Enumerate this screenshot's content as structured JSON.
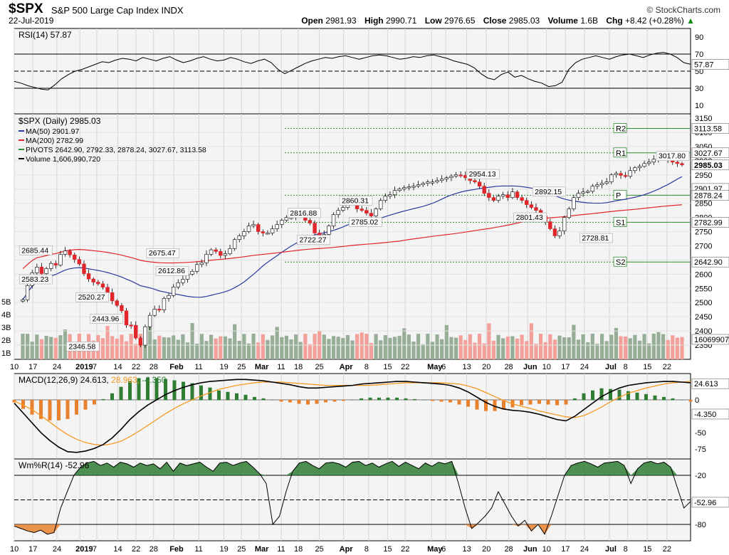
{
  "header": {
    "symbol": "$SPX",
    "name": "S&P 500 Large Cap Index",
    "exchange": "INDX",
    "date": "22-Jul-2019",
    "brand": "© StockCharts.com",
    "open_label": "Open",
    "open": "2981.93",
    "high_label": "High",
    "high": "2990.71",
    "low_label": "Low",
    "low": "2976.65",
    "close_label": "Close",
    "close": "2985.03",
    "volume_label": "Volume",
    "volume": "1.6B",
    "chg_label": "Chg",
    "chg": "+8.42 (+0.28%)"
  },
  "colors": {
    "up": "#ffffff",
    "down": "#e0262b",
    "ma50": "#2b3aa0",
    "ma200": "#e0262b",
    "pivot": "#2e8b2e",
    "rsi": "#000000",
    "macd_signal": "#f59a23",
    "hist_pos": "#2e7d32",
    "hist_neg": "#e8812e",
    "vol_up": "#96ad96",
    "vol_down": "#f4a09a"
  },
  "chart_data": [
    {
      "type": "line",
      "panel": "rsi",
      "label": "RSI(14) 57.87",
      "ylim": [
        0,
        100
      ],
      "yticks": [
        10,
        30,
        50,
        70,
        90
      ],
      "current": "57.87",
      "values": [
        38,
        36,
        33,
        31,
        29,
        28,
        34,
        41,
        46,
        50,
        52,
        55,
        58,
        61,
        60,
        63,
        65,
        64,
        62,
        66,
        64,
        62,
        65,
        67,
        63,
        60,
        62,
        65,
        67,
        64,
        62,
        63,
        66,
        64,
        61,
        59,
        62,
        64,
        60,
        52,
        47,
        51,
        55,
        59,
        62,
        64,
        66,
        65,
        67,
        68,
        66,
        64,
        66,
        68,
        69,
        68,
        66,
        64,
        65,
        67,
        66,
        68,
        69,
        67,
        65,
        62,
        60,
        58,
        54,
        47,
        42,
        40,
        46,
        49,
        43,
        45,
        41,
        38,
        36,
        32,
        33,
        37,
        52,
        60,
        64,
        66,
        68,
        66,
        64,
        67,
        69,
        70,
        68,
        66,
        69,
        71,
        72,
        70,
        66,
        60,
        58
      ]
    },
    {
      "type": "candlestick",
      "panel": "price",
      "label": "$SPX (Daily) 2985.03",
      "legend": [
        {
          "text": "MA(50) 2901.97",
          "color": "#2b3aa0"
        },
        {
          "text": "MA(200) 2782.99",
          "color": "#e0262b"
        },
        {
          "text": "PIVOTS 2642.90, 2792.33, 2878.24, 3027.67, 3113.58",
          "color": "#2e8b2e"
        },
        {
          "text": "Volume 1,606,990,720",
          "color": "#000000"
        }
      ],
      "ylim": [
        2300,
        3165
      ],
      "yticks": [
        2350,
        2400,
        2450,
        2500,
        2550,
        2600,
        2650,
        2700,
        2750,
        2800,
        2850,
        2900,
        2950,
        3000,
        3050,
        3100,
        3150
      ],
      "close": [
        2510,
        2560,
        2605,
        2625,
        2602,
        2620,
        2638,
        2632,
        2670,
        2682,
        2668,
        2652,
        2636,
        2602,
        2583,
        2572,
        2566,
        2554,
        2535,
        2506,
        2490,
        2471,
        2421,
        2420,
        2375,
        2350,
        2415,
        2455,
        2477,
        2474,
        2515,
        2525,
        2555,
        2570,
        2582,
        2600,
        2610,
        2634,
        2640,
        2670,
        2686,
        2680,
        2666,
        2672,
        2690,
        2722,
        2735,
        2750,
        2770,
        2775,
        2750,
        2745,
        2745,
        2760,
        2775,
        2790,
        2800,
        2800,
        2810,
        2815,
        2790,
        2780,
        2745,
        2732,
        2740,
        2770,
        2810,
        2825,
        2835,
        2855,
        2858,
        2830,
        2825,
        2815,
        2805,
        2830,
        2860,
        2875,
        2880,
        2895,
        2900,
        2905,
        2908,
        2910,
        2915,
        2920,
        2925,
        2925,
        2930,
        2935,
        2940,
        2945,
        2950,
        2948,
        2940,
        2930,
        2925,
        2910,
        2885,
        2870,
        2860,
        2875,
        2880,
        2870,
        2890,
        2870,
        2860,
        2845,
        2835,
        2825,
        2805,
        2785,
        2760,
        2735,
        2752,
        2800,
        2830,
        2870,
        2885,
        2890,
        2892,
        2910,
        2915,
        2920,
        2925,
        2950,
        2955,
        2948,
        2945,
        2965,
        2975,
        2980,
        2990,
        2995,
        3005,
        3010,
        3015,
        3000,
        2995,
        2990,
        2985
      ],
      "ma50_last": 2901.97,
      "ma200_last": 2782.99,
      "pivots": [
        {
          "label": "R2",
          "value": 3113.58
        },
        {
          "label": "R1",
          "value": 3027.67
        },
        {
          "label": "P",
          "value": 2878.24
        },
        {
          "label": "S1",
          "value": 2782.99
        },
        {
          "label": "S2",
          "value": 2642.9
        }
      ],
      "annotations": [
        {
          "text": "2685.44",
          "value": 2685.44,
          "day": 2
        },
        {
          "text": "2583.23",
          "value": 2583.23,
          "day": 2
        },
        {
          "text": "2520.27",
          "value": 2520.27,
          "day": 14
        },
        {
          "text": "2443.96",
          "value": 2443.96,
          "day": 17
        },
        {
          "text": "2346.58",
          "value": 2346.58,
          "day": 12
        },
        {
          "text": "2675.47",
          "value": 2675.47,
          "day": 29
        },
        {
          "text": "2612.86",
          "value": 2612.86,
          "day": 31
        },
        {
          "text": "2816.88",
          "value": 2816.88,
          "day": 59
        },
        {
          "text": "2722.27",
          "value": 2722.27,
          "day": 61
        },
        {
          "text": "2860.31",
          "value": 2860.31,
          "day": 70
        },
        {
          "text": "2785.02",
          "value": 2785.02,
          "day": 72
        },
        {
          "text": "2954.13",
          "value": 2954.13,
          "day": 97
        },
        {
          "text": "2892.15",
          "value": 2892.15,
          "day": 111
        },
        {
          "text": "2801.43",
          "value": 2801.43,
          "day": 107
        },
        {
          "text": "2728.81",
          "value": 2728.81,
          "day": 121
        },
        {
          "text": "3017.80",
          "value": 3017.8,
          "day": 148
        }
      ],
      "right_labels": [
        "3113.58",
        "3027.67",
        "2985.03",
        "2901.97",
        "2878.24",
        "2782.99",
        "2642.90"
      ],
      "volume_ticks": [
        "1B",
        "2B",
        "3B",
        "4B",
        "5B"
      ],
      "volume_last": "1606990720"
    },
    {
      "type": "line",
      "panel": "macd",
      "label_prefix": "MACD(12,26,9)",
      "label_macd": "24.613",
      "label_signal": "28.963",
      "label_hist": "-4.350",
      "ylim": [
        -90,
        40
      ],
      "yticks": [
        25,
        0,
        -25,
        -50,
        -75
      ],
      "current_macd": "24.613",
      "current_hist": "-4.350",
      "macd": [
        -5,
        -20,
        -35,
        -50,
        -62,
        -72,
        -79,
        -80,
        -78,
        -74,
        -68,
        -58,
        -45,
        -30,
        -18,
        -8,
        0,
        8,
        14,
        19,
        23,
        26,
        28,
        29,
        30,
        31,
        31,
        30,
        29,
        27,
        25,
        23,
        20,
        18,
        18,
        19,
        20,
        21,
        22,
        24,
        25,
        26,
        27,
        28,
        28,
        27,
        26,
        25,
        24,
        22,
        18,
        12,
        4,
        -4,
        -10,
        -14,
        -16,
        -17,
        -19,
        -22,
        -26,
        -30,
        -32,
        -25,
        -15,
        -5,
        5,
        12,
        18,
        22,
        24,
        26,
        27,
        28,
        28,
        27,
        26
      ],
      "signal": [
        -2,
        -8,
        -15,
        -24,
        -34,
        -44,
        -53,
        -60,
        -65,
        -68,
        -69,
        -67,
        -63,
        -56,
        -48,
        -39,
        -30,
        -21,
        -13,
        -6,
        0,
        6,
        11,
        16,
        19,
        22,
        24,
        26,
        27,
        27,
        27,
        26,
        25,
        24,
        23,
        22,
        22,
        22,
        22,
        22,
        22,
        23,
        24,
        25,
        26,
        26,
        26,
        26,
        26,
        25,
        24,
        21,
        17,
        11,
        5,
        -1,
        -6,
        -10,
        -13,
        -17,
        -20,
        -23,
        -26,
        -27,
        -24,
        -18,
        -11,
        -3,
        4,
        10,
        14,
        18,
        21,
        24,
        26,
        27,
        28
      ]
    },
    {
      "type": "line",
      "panel": "willr",
      "label": "Wm%R(14) -52.96",
      "ylim": [
        -100,
        0
      ],
      "yticks": [
        -20,
        -50,
        -80
      ],
      "current": "-52.96",
      "values": [
        -82,
        -85,
        -88,
        -90,
        -87,
        -92,
        -90,
        -60,
        -40,
        -20,
        -10,
        -5,
        -3,
        -8,
        -5,
        -10,
        -4,
        -6,
        -10,
        -5,
        -8,
        -6,
        -12,
        -4,
        -15,
        -5,
        -8,
        -6,
        -4,
        -10,
        -15,
        -5,
        -4,
        -8,
        -5,
        -3,
        -10,
        -18,
        -30,
        -80,
        -70,
        -40,
        -15,
        -5,
        -3,
        -8,
        -12,
        -5,
        -4,
        -6,
        -10,
        -4,
        -3,
        -8,
        -5,
        -10,
        -6,
        -3,
        -9,
        -4,
        -8,
        -12,
        -5,
        -9,
        -4,
        -6,
        -3,
        -30,
        -60,
        -85,
        -78,
        -70,
        -60,
        -40,
        -55,
        -70,
        -82,
        -75,
        -88,
        -80,
        -92,
        -70,
        -45,
        -20,
        -8,
        -5,
        -3,
        -6,
        -10,
        -5,
        -4,
        -3,
        -8,
        -30,
        -12,
        -5,
        -3,
        -6,
        -4,
        -10,
        -35,
        -60,
        -52
      ]
    }
  ],
  "x_axis": {
    "ticks": [
      {
        "label": "10",
        "frac": 0.0
      },
      {
        "label": "17",
        "frac": 0.0275
      },
      {
        "label": "24",
        "frac": 0.063
      },
      {
        "label": "2019",
        "frac": 0.097,
        "bold": true
      },
      {
        "label": "7",
        "frac": 0.122
      },
      {
        "label": "14",
        "frac": 0.153
      },
      {
        "label": "22",
        "frac": 0.18
      },
      {
        "label": "28",
        "frac": 0.206
      },
      {
        "label": "Feb",
        "frac": 0.236,
        "bold": true
      },
      {
        "label": "11",
        "frac": 0.273
      },
      {
        "label": "19",
        "frac": 0.31
      },
      {
        "label": "25",
        "frac": 0.336
      },
      {
        "label": "Mar",
        "frac": 0.362,
        "bold": true
      },
      {
        "label": "11",
        "frac": 0.395
      },
      {
        "label": "18",
        "frac": 0.42
      },
      {
        "label": "25",
        "frac": 0.451
      },
      {
        "label": "Apr",
        "frac": 0.487,
        "bold": true
      },
      {
        "label": "8",
        "frac": 0.524
      },
      {
        "label": "15",
        "frac": 0.552
      },
      {
        "label": "22",
        "frac": 0.578
      },
      {
        "label": "May",
        "frac": 0.617,
        "bold": true
      },
      {
        "label": "6",
        "frac": 0.638
      },
      {
        "label": "13",
        "frac": 0.669
      },
      {
        "label": "20",
        "frac": 0.698
      },
      {
        "label": "28",
        "frac": 0.731
      },
      {
        "label": "Jun",
        "frac": 0.759,
        "bold": true
      },
      {
        "label": "10",
        "frac": 0.787
      },
      {
        "label": "17",
        "frac": 0.815
      },
      {
        "label": "24",
        "frac": 0.843
      },
      {
        "label": "Jul",
        "frac": 0.88,
        "bold": true
      },
      {
        "label": "8",
        "frac": 0.907
      },
      {
        "label": "15",
        "frac": 0.936
      },
      {
        "label": "22",
        "frac": 0.965
      }
    ]
  }
}
